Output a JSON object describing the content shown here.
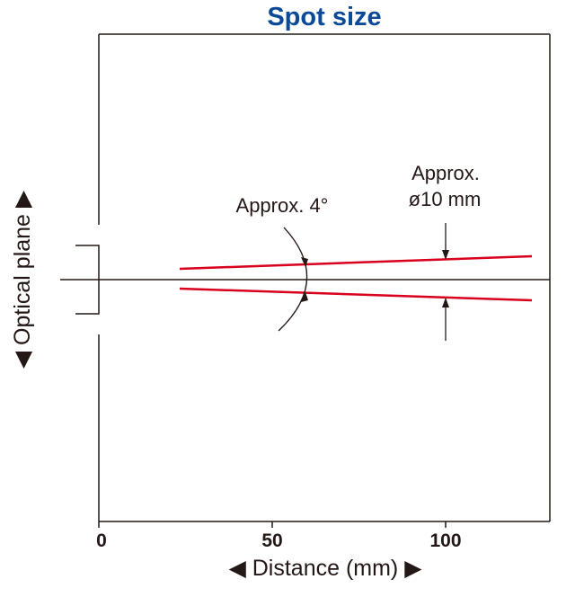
{
  "title": "Spot size",
  "y_axis_label": "◀ Optical plane ▶",
  "x_axis_label": "◀ Distance (mm) ▶",
  "x_ticks": [
    "0",
    "50",
    "100"
  ],
  "annotations": {
    "angle_label": "Approx. 4°",
    "diameter_label_line1": "Approx.",
    "diameter_label_line2": "ø10 mm"
  },
  "colors": {
    "title": "#0b4a99",
    "beam": "#d9001b",
    "line": "#231815"
  }
}
